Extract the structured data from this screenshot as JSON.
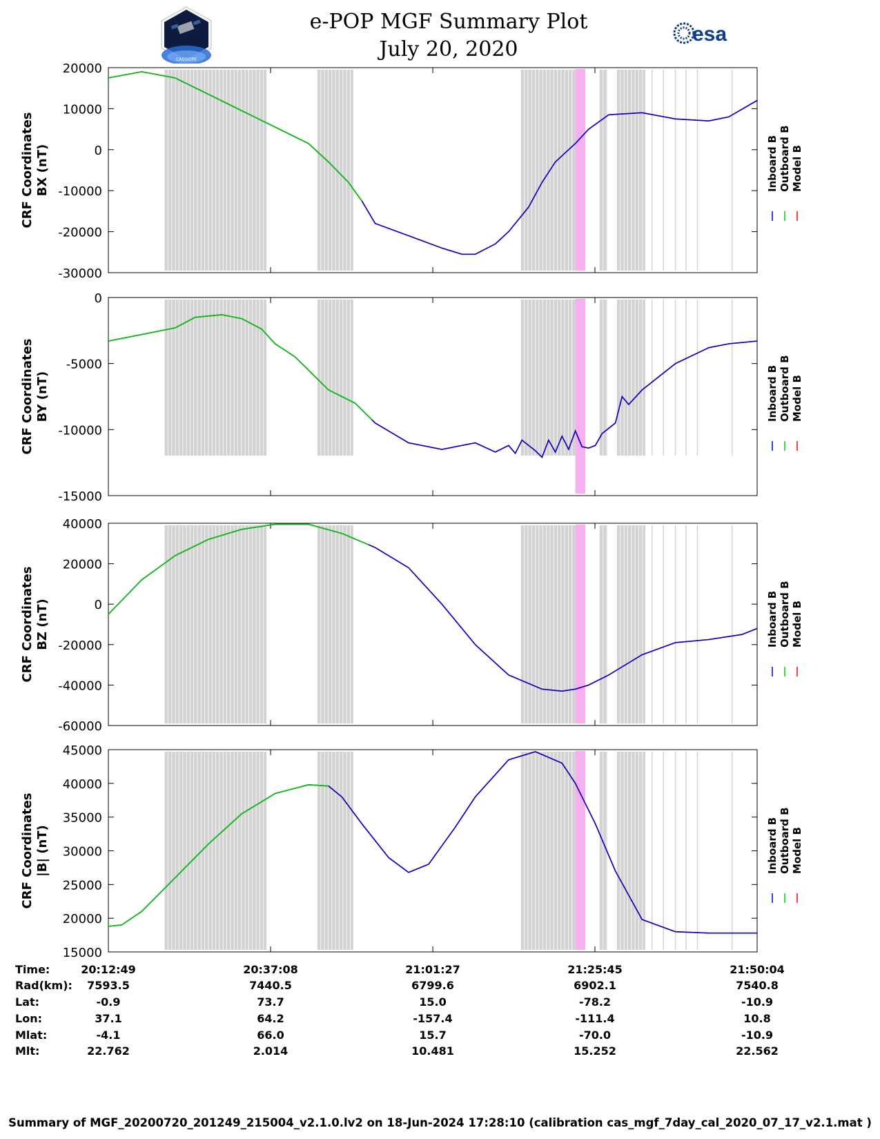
{
  "header": {
    "title_line1": "e-POP MGF Summary Plot",
    "title_line2": "July 20, 2020",
    "left_logo_text": "CASSIOPE",
    "right_logo_text": "esa"
  },
  "footer": {
    "text": "Summary of MGF_20200720_201249_215004_v2.1.0.lv2 on 18-Jun-2024 17:28:10 (calibration cas_mgf_7day_cal_2020_07_17_v2.1.mat )"
  },
  "colors": {
    "inboard": "#0000cc",
    "outboard": "#00cc00",
    "model": "#ff0000",
    "gray_band": "#d3d3d3",
    "pink_band": "#f5b0f0"
  },
  "chart_data": {
    "type": "line",
    "x_range_min": [
      0,
      97.25
    ],
    "time_labels": [
      "20:12:49",
      "20:37:08",
      "21:01:27",
      "21:25:45",
      "21:50:04"
    ],
    "ephemeris": {
      "row_labels": [
        "Time:",
        "Rad(km):",
        "Lat:",
        "Lon:",
        "Mlat:",
        "Mlt:"
      ],
      "columns": [
        [
          "20:12:49",
          "7593.5",
          "-0.9",
          "37.1",
          "-4.1",
          "22.762"
        ],
        [
          "20:37:08",
          "7440.5",
          "73.7",
          "64.2",
          "66.0",
          "2.014"
        ],
        [
          "21:01:27",
          "6799.6",
          "15.0",
          "-157.4",
          "15.7",
          "10.481"
        ],
        [
          "21:25:45",
          "6902.1",
          "-78.2",
          "-111.4",
          "-70.0",
          "15.252"
        ],
        [
          "21:50:04",
          "7540.8",
          "-10.9",
          "10.8",
          "-10.9",
          "22.562"
        ]
      ]
    },
    "legend": [
      "Inboard B",
      "Outboard B",
      "Model B"
    ],
    "gray_band_ranges_min": [
      [
        8.4,
        23.7
      ],
      [
        31.3,
        36.7
      ],
      [
        61.8,
        70.6
      ],
      [
        73.6,
        74.8
      ],
      [
        76.2,
        80.5
      ]
    ],
    "pink_band_range_min": [
      70.0,
      71.5
    ],
    "outboard_until_min": [
      38.0,
      39.5,
      39.0,
      33.0
    ],
    "panels": [
      {
        "ylabel_line1": "CRF Coordinates",
        "ylabel_line2": "BX (nT)",
        "ylim": [
          -30000,
          20000
        ],
        "yticks": [
          "20000",
          "10000",
          "0",
          "-10000",
          "-20000",
          "-30000"
        ],
        "x": [
          0,
          5,
          10,
          15,
          20,
          25,
          30,
          33,
          36,
          38,
          40,
          45,
          50,
          53,
          55,
          58,
          60,
          63,
          65,
          67,
          69,
          70,
          72,
          75,
          80,
          85,
          90,
          93,
          97.25
        ],
        "y": [
          17500,
          19000,
          17500,
          13500,
          9500,
          5500,
          1500,
          -3000,
          -8000,
          -12500,
          -18000,
          -21000,
          -24000,
          -25500,
          -25500,
          -23000,
          -20000,
          -14000,
          -8000,
          -3000,
          0,
          1500,
          5000,
          8500,
          9000,
          7500,
          7000,
          8000,
          12000
        ]
      },
      {
        "ylabel_line1": "CRF Coordinates",
        "ylabel_line2": "BY (nT)",
        "ylim": [
          -15000,
          0
        ],
        "yticks": [
          "0",
          "-5000",
          "-10000",
          "-15000"
        ],
        "x": [
          0,
          10,
          13,
          17,
          20,
          23,
          25,
          28,
          30,
          31,
          33,
          35,
          37,
          40,
          45,
          50,
          55,
          58,
          60,
          61,
          62,
          63,
          64,
          65,
          66,
          67,
          68,
          69,
          70,
          71,
          72,
          73,
          74,
          76,
          77,
          78,
          80,
          85,
          90,
          93,
          97.25
        ],
        "y": [
          -3300,
          -2300,
          -1500,
          -1300,
          -1600,
          -2400,
          -3500,
          -4500,
          -5500,
          -6000,
          -7000,
          -7500,
          -8000,
          -9500,
          -11000,
          -11500,
          -11000,
          -11700,
          -11200,
          -11800,
          -10800,
          -11200,
          -11600,
          -12100,
          -10800,
          -11700,
          -10500,
          -11500,
          -10100,
          -11300,
          -11400,
          -11200,
          -10300,
          -9500,
          -7500,
          -8100,
          -7000,
          -5000,
          -3800,
          -3500,
          -3300
        ]
      },
      {
        "ylabel_line1": "CRF Coordinates",
        "ylabel_line2": "BZ (nT)",
        "ylim": [
          -60000,
          40000
        ],
        "yticks": [
          "40000",
          "20000",
          "0",
          "-20000",
          "-40000",
          "-60000"
        ],
        "x": [
          0,
          5,
          10,
          15,
          20,
          25,
          30,
          35,
          40,
          45,
          50,
          55,
          60,
          65,
          68,
          70,
          72,
          75,
          80,
          85,
          90,
          95,
          97.25
        ],
        "y": [
          -5000,
          12000,
          24000,
          32000,
          37000,
          39500,
          39500,
          35000,
          28000,
          18000,
          0,
          -20000,
          -35000,
          -42000,
          -43000,
          -42000,
          -40000,
          -35000,
          -25000,
          -19000,
          -17500,
          -15000,
          -12000
        ]
      },
      {
        "ylabel_line1": "CRF Coordinates",
        "ylabel_line2": "|B| (nT)",
        "ylim": [
          15000,
          45000
        ],
        "yticks": [
          "45000",
          "40000",
          "35000",
          "30000",
          "25000",
          "20000",
          "15000"
        ],
        "x": [
          0,
          2,
          5,
          10,
          15,
          20,
          25,
          30,
          33,
          35,
          38,
          42,
          45,
          48,
          52,
          55,
          60,
          64,
          68,
          70,
          73,
          76,
          80,
          85,
          90,
          97.25
        ],
        "y": [
          18800,
          19000,
          21000,
          26000,
          31000,
          35500,
          38500,
          39800,
          39600,
          38000,
          34000,
          29000,
          26800,
          28000,
          33500,
          38000,
          43500,
          44700,
          43000,
          40000,
          34000,
          27000,
          19800,
          18000,
          17800,
          17800
        ]
      }
    ]
  }
}
